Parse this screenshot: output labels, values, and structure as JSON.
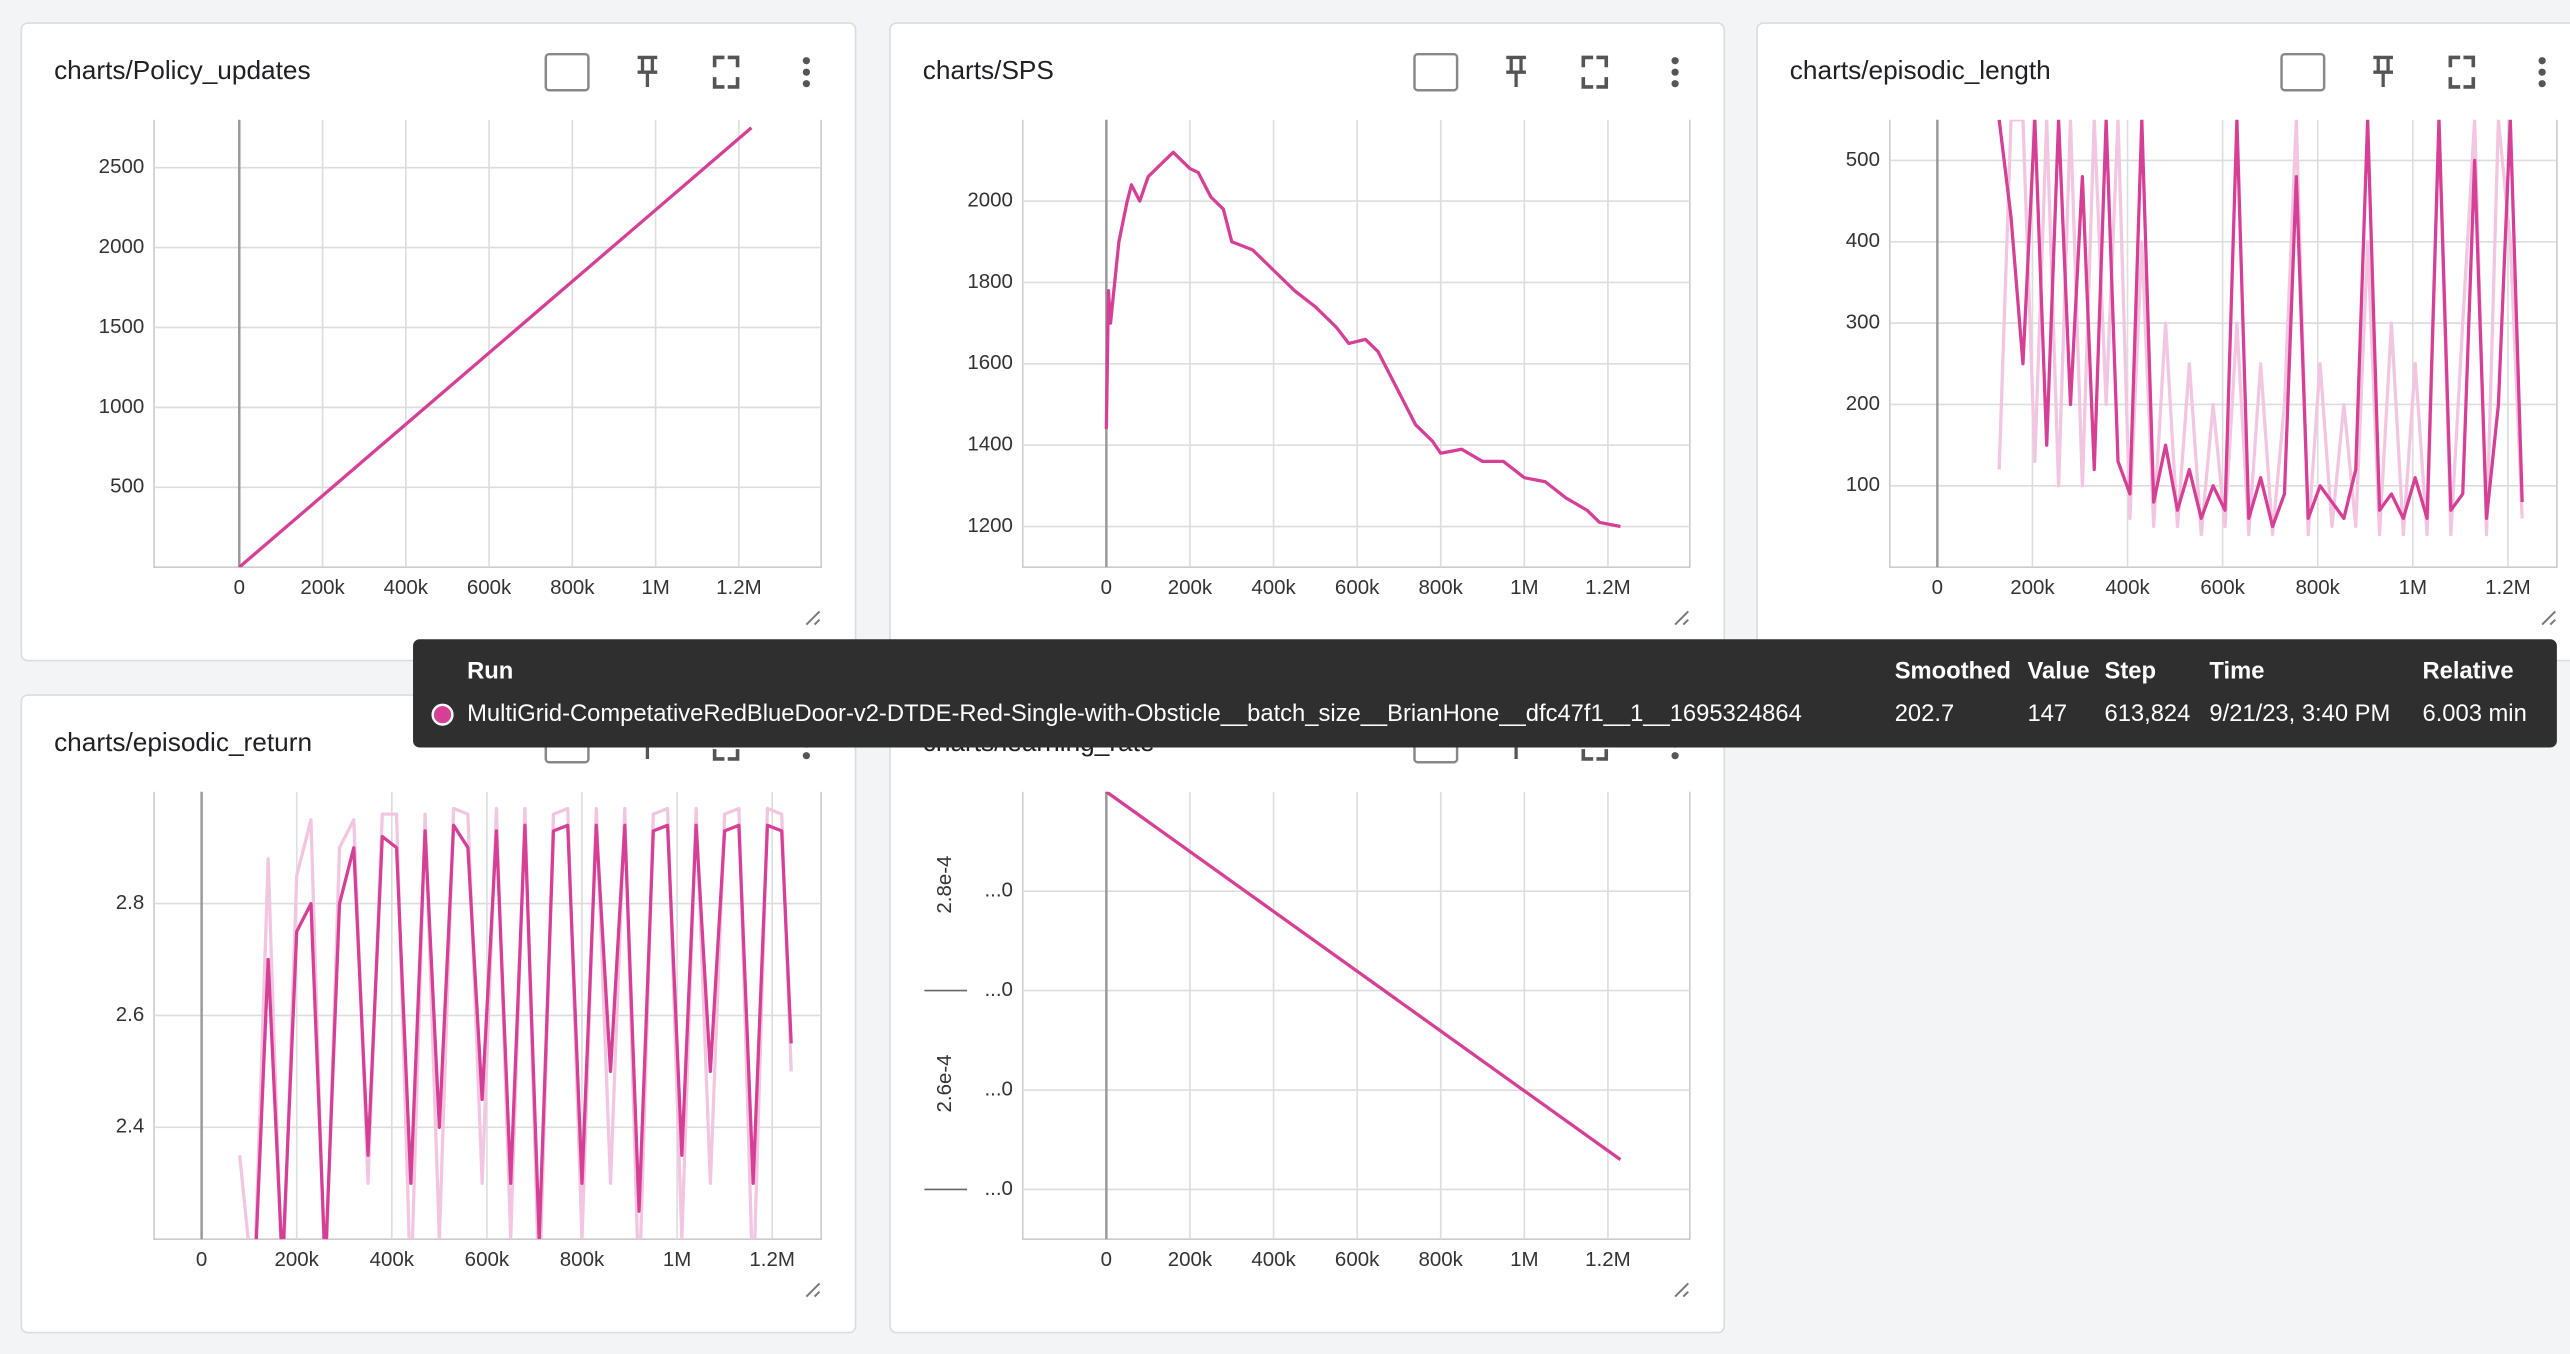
{
  "chart_data": [
    {
      "type": "line",
      "title": "charts/Policy_updates",
      "x": [
        0,
        1230000
      ],
      "series": [
        {
          "color": "#d63f96",
          "values": [
            0,
            2750
          ]
        }
      ],
      "xlim": [
        -204700,
        1397600
      ],
      "ylim": [
        0,
        2800
      ],
      "xticks": [
        0,
        {
          "value": 200000,
          "label": "200k"
        },
        {
          "value": 400000,
          "label": "400k"
        },
        {
          "value": 600000,
          "label": "600k"
        },
        {
          "value": 800000,
          "label": "800k"
        },
        {
          "value": 1000000,
          "label": "1M"
        },
        {
          "value": 1200000,
          "label": "1.2M"
        }
      ],
      "yticks": [
        500,
        1000,
        1500,
        2000,
        2500
      ],
      "grid": true
    },
    {
      "type": "line",
      "title": "charts/SPS",
      "x": [
        0,
        5000,
        10000,
        30000,
        50000,
        60000,
        80000,
        100000,
        130000,
        160000,
        180000,
        200000,
        220000,
        250000,
        280000,
        300000,
        350000,
        400000,
        450000,
        500000,
        550000,
        580000,
        620000,
        650000,
        700000,
        740000,
        780000,
        800000,
        850000,
        900000,
        950000,
        1000000,
        1050000,
        1100000,
        1150000,
        1180000,
        1230000
      ],
      "series": [
        {
          "color": "#d63f96",
          "values": [
            1440,
            1780,
            1700,
            1900,
            2000,
            2040,
            2000,
            2060,
            2090,
            2120,
            2100,
            2080,
            2070,
            2010,
            1980,
            1900,
            1880,
            1830,
            1780,
            1740,
            1690,
            1650,
            1660,
            1630,
            1530,
            1450,
            1410,
            1380,
            1390,
            1360,
            1360,
            1320,
            1310,
            1270,
            1240,
            1210,
            1200
          ]
        }
      ],
      "xlim": [
        -200000,
        1396000
      ],
      "ylim": [
        1100,
        2200
      ],
      "xticks": [
        0,
        {
          "value": 200000,
          "label": "200k"
        },
        {
          "value": 400000,
          "label": "400k"
        },
        {
          "value": 600000,
          "label": "600k"
        },
        {
          "value": 800000,
          "label": "800k"
        },
        {
          "value": 1000000,
          "label": "1M"
        },
        {
          "value": 1200000,
          "label": "1.2M"
        }
      ],
      "yticks": [
        1200,
        1400,
        1600,
        1800,
        2000
      ],
      "grid": true
    },
    {
      "type": "line",
      "title": "charts/episodic_length",
      "x": [
        130000,
        155000,
        180000,
        205000,
        230000,
        255000,
        280000,
        305000,
        330000,
        355000,
        380000,
        405000,
        430000,
        455000,
        480000,
        505000,
        530000,
        555000,
        580000,
        605000,
        630000,
        655000,
        680000,
        705000,
        730000,
        755000,
        780000,
        805000,
        830000,
        855000,
        880000,
        905000,
        930000,
        955000,
        980000,
        1005000,
        1030000,
        1055000,
        1080000,
        1105000,
        1130000,
        1155000,
        1180000,
        1205000,
        1230000
      ],
      "series": [
        {
          "color": "#f2c6e0",
          "values": [
            120,
            550,
            550,
            130,
            550,
            100,
            550,
            100,
            550,
            200,
            550,
            60,
            400,
            50,
            300,
            50,
            250,
            40,
            200,
            50,
            300,
            40,
            250,
            40,
            200,
            550,
            40,
            250,
            50,
            200,
            50,
            400,
            40,
            300,
            40,
            250,
            40,
            550,
            40,
            300,
            550,
            40,
            550,
            400,
            60
          ]
        },
        {
          "color": "#d63f96",
          "values": [
            550,
            430,
            250,
            550,
            150,
            550,
            200,
            480,
            120,
            550,
            130,
            90,
            550,
            80,
            150,
            70,
            120,
            60,
            100,
            70,
            550,
            60,
            110,
            50,
            90,
            480,
            60,
            100,
            80,
            60,
            120,
            550,
            70,
            90,
            60,
            110,
            60,
            550,
            70,
            90,
            500,
            60,
            200,
            550,
            80
          ]
        }
      ],
      "xlim": [
        -100000,
        1303000
      ],
      "ylim": [
        0,
        550
      ],
      "xticks": [
        0,
        {
          "value": 200000,
          "label": "200k"
        },
        {
          "value": 400000,
          "label": "400k"
        },
        {
          "value": 600000,
          "label": "600k"
        },
        {
          "value": 800000,
          "label": "800k"
        },
        {
          "value": 1000000,
          "label": "1M"
        },
        {
          "value": 1200000,
          "label": "1.2M"
        }
      ],
      "yticks": [
        100,
        200,
        300,
        400,
        500
      ],
      "grid": true
    },
    {
      "type": "line",
      "title": "charts/episodic_return",
      "x": [
        80000,
        110000,
        140000,
        170000,
        200000,
        230000,
        260000,
        290000,
        320000,
        350000,
        380000,
        410000,
        440000,
        470000,
        500000,
        530000,
        560000,
        590000,
        620000,
        650000,
        680000,
        710000,
        740000,
        770000,
        800000,
        830000,
        860000,
        890000,
        920000,
        950000,
        980000,
        1010000,
        1040000,
        1070000,
        1100000,
        1130000,
        1160000,
        1190000,
        1220000,
        1240000
      ],
      "series": [
        {
          "color": "#f2c6e0",
          "values": [
            2.35,
            2.1,
            2.88,
            2.1,
            2.85,
            2.95,
            2.1,
            2.9,
            2.95,
            2.3,
            2.96,
            2.96,
            2.1,
            2.96,
            2.2,
            2.97,
            2.96,
            2.3,
            2.97,
            2.2,
            2.97,
            2.1,
            2.96,
            2.97,
            2.2,
            2.97,
            2.3,
            2.97,
            2.1,
            2.96,
            2.97,
            2.2,
            2.97,
            2.3,
            2.96,
            2.97,
            2.1,
            2.97,
            2.96,
            2.5
          ]
        },
        {
          "color": "#d63f96",
          "values": [
            2.1,
            2.1,
            2.7,
            2.15,
            2.75,
            2.8,
            2.15,
            2.8,
            2.9,
            2.35,
            2.92,
            2.9,
            2.3,
            2.93,
            2.4,
            2.94,
            2.9,
            2.45,
            2.93,
            2.3,
            2.94,
            2.2,
            2.93,
            2.94,
            2.3,
            2.94,
            2.5,
            2.94,
            2.25,
            2.93,
            2.94,
            2.35,
            2.94,
            2.5,
            2.93,
            2.94,
            2.3,
            2.94,
            2.93,
            2.55
          ]
        }
      ],
      "xlim": [
        -100000,
        1303000
      ],
      "ylim": [
        2.2,
        3.0
      ],
      "xticks": [
        0,
        {
          "value": 200000,
          "label": "200k"
        },
        {
          "value": 400000,
          "label": "400k"
        },
        {
          "value": 600000,
          "label": "600k"
        },
        {
          "value": 800000,
          "label": "800k"
        },
        {
          "value": 1000000,
          "label": "1M"
        },
        {
          "value": 1200000,
          "label": "1.2M"
        }
      ],
      "yticks": [
        2.4,
        2.6,
        2.8
      ],
      "grid": true
    },
    {
      "type": "line",
      "title": "charts/learning_rate",
      "x": [
        0,
        1230000
      ],
      "series": [
        {
          "color": "#d63f96",
          "values": [
            0.00029,
            0.000253
          ]
        }
      ],
      "xlim": [
        -200000,
        1396000
      ],
      "ylim": [
        0.000245,
        0.00029
      ],
      "xticks": [
        0,
        {
          "value": 200000,
          "label": "200k"
        },
        {
          "value": 400000,
          "label": "400k"
        },
        {
          "value": 600000,
          "label": "600k"
        },
        {
          "value": 800000,
          "label": "800k"
        },
        {
          "value": 1000000,
          "label": "1M"
        },
        {
          "value": 1200000,
          "label": "1.2M"
        }
      ],
      "yticks": [
        {
          "value": 0.00028,
          "label": "...0"
        },
        {
          "value": 0.00027,
          "label": "...0"
        },
        {
          "value": 0.00026,
          "label": "...0"
        },
        {
          "value": 0.00025,
          "label": "...0"
        }
      ],
      "y_rotated_labels": [
        {
          "value": 0.00028,
          "label": "2.8e-4"
        },
        {
          "value": 0.00026,
          "label": "2.6e-4"
        }
      ],
      "grid": true
    }
  ],
  "tooltip": {
    "columns": [
      "Run",
      "Smoothed",
      "Value",
      "Step",
      "Time",
      "Relative"
    ],
    "row": [
      "MultiGrid-CompetativeRedBlueDoor-v2-DTDE-Red-Single-with-Obsticle__batch_size__BrianHone__dfc47f1__1__1695324864",
      "202.7",
      "147",
      "613,824",
      "9/21/23, 3:40 PM",
      "6.003 min"
    ]
  }
}
